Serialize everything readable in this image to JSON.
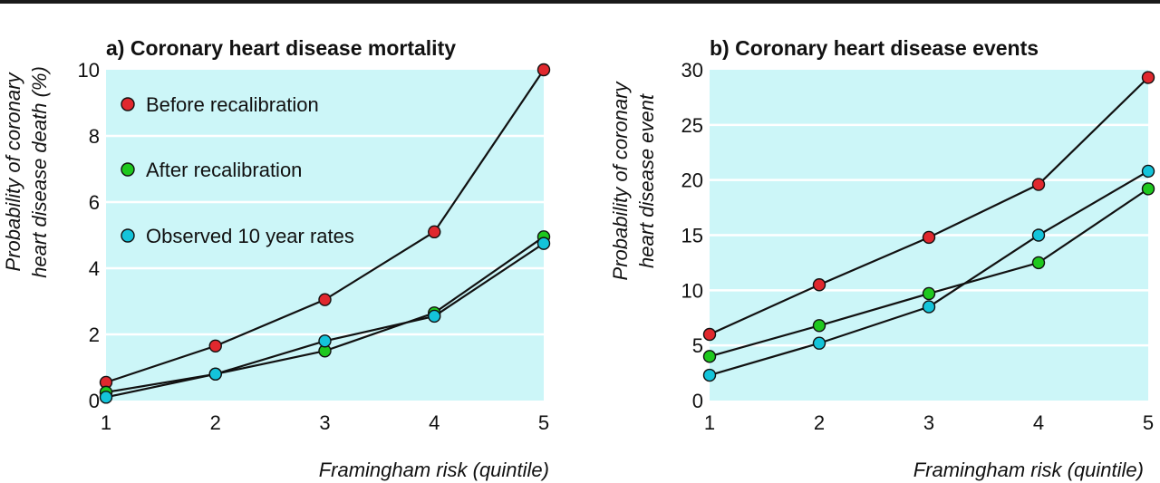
{
  "colors": {
    "background": "#ccf6f8",
    "grid": "#ffffff",
    "line": "#111111",
    "before_recalibration": "#e0282e",
    "after_recalibration": "#1ec81e",
    "observed": "#14c4da"
  },
  "legend": {
    "placement": "top-left, inside panel a",
    "entries": [
      {
        "label": "Before recalibration",
        "color": "#e0282e"
      },
      {
        "label": "After recalibration",
        "color": "#1ec81e"
      },
      {
        "label": "Observed 10 year rates",
        "color": "#14c4da"
      }
    ]
  },
  "chart_data": [
    {
      "type": "line",
      "title": "a) Coronary heart disease mortality",
      "xlabel": "Framingham risk (quintile)",
      "ylabel": [
        "Probability of coronary",
        "heart disease death (%)"
      ],
      "x": [
        1,
        2,
        3,
        4,
        5
      ],
      "xlim": [
        1,
        5
      ],
      "ylim": [
        0,
        10
      ],
      "yticks": [
        0,
        2,
        4,
        6,
        8,
        10
      ],
      "grid": true,
      "series": [
        {
          "name": "Before recalibration",
          "color": "#e0282e",
          "values": [
            0.55,
            1.65,
            3.05,
            5.1,
            10.0
          ]
        },
        {
          "name": "After recalibration",
          "color": "#1ec81e",
          "values": [
            0.25,
            0.8,
            1.5,
            2.65,
            4.95
          ]
        },
        {
          "name": "Observed 10 year rates",
          "color": "#14c4da",
          "values": [
            0.1,
            0.8,
            1.8,
            2.55,
            4.75
          ]
        }
      ]
    },
    {
      "type": "line",
      "title": "b) Coronary heart disease events",
      "xlabel": "Framingham risk (quintile)",
      "ylabel": [
        "Probability of coronary",
        "heart disease event"
      ],
      "x": [
        1,
        2,
        3,
        4,
        5
      ],
      "xlim": [
        1,
        5
      ],
      "ylim": [
        0,
        30
      ],
      "yticks": [
        0,
        5,
        10,
        15,
        20,
        25,
        30
      ],
      "grid": true,
      "series": [
        {
          "name": "Before recalibration",
          "color": "#e0282e",
          "values": [
            6.0,
            10.5,
            14.8,
            19.6,
            29.3
          ]
        },
        {
          "name": "After recalibration",
          "color": "#1ec81e",
          "values": [
            4.0,
            6.8,
            9.7,
            12.5,
            19.2
          ]
        },
        {
          "name": "Observed 10 year rates",
          "color": "#14c4da",
          "values": [
            2.3,
            5.2,
            8.5,
            15.0,
            20.8
          ]
        }
      ]
    }
  ]
}
